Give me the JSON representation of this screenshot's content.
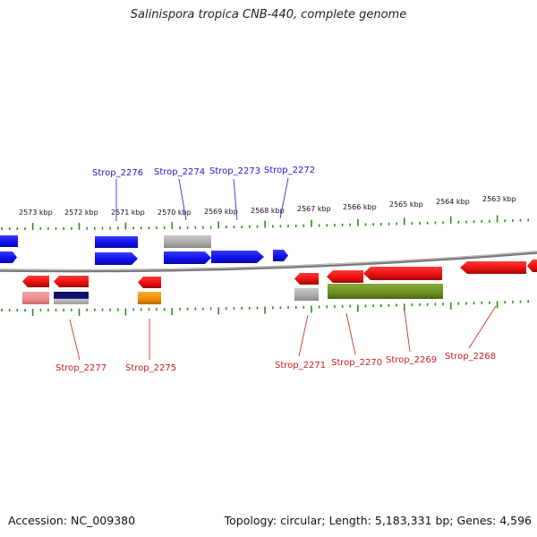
{
  "title": "Salinispora tropica CNB-440, complete genome",
  "footer": {
    "accession": "Accession: NC_009380",
    "summary": "Topology: circular; Length: 5,183,331 bp; Genes: 4,596"
  },
  "colors": {
    "forward_label": "#1a1acc",
    "reverse_label": "#cc1a1a",
    "tick": "#2e8b22",
    "backbone": "#888888"
  },
  "scale_labels": [
    {
      "kbp": 2573,
      "text": "2573 kbp"
    },
    {
      "kbp": 2572,
      "text": "2572 kbp"
    },
    {
      "kbp": 2571,
      "text": "2571 kbp"
    },
    {
      "kbp": 2570,
      "text": "2570 kbp"
    },
    {
      "kbp": 2569,
      "text": "2569 kbp"
    },
    {
      "kbp": 2568,
      "text": "2568 kbp"
    },
    {
      "kbp": 2567,
      "text": "2567 kbp"
    },
    {
      "kbp": 2566,
      "text": "2566 kbp"
    },
    {
      "kbp": 2565,
      "text": "2565 kbp"
    },
    {
      "kbp": 2564,
      "text": "2564 kbp"
    },
    {
      "kbp": 2563,
      "text": "2563 kbp"
    }
  ],
  "gene_labels": [
    {
      "text": "Strop_2276",
      "strand": "forward"
    },
    {
      "text": "Strop_2274",
      "strand": "forward"
    },
    {
      "text": "Strop_2273",
      "strand": "forward"
    },
    {
      "text": "Strop_2272",
      "strand": "forward"
    },
    {
      "text": "Strop_2277",
      "strand": "reverse"
    },
    {
      "text": "Strop_2275",
      "strand": "reverse"
    },
    {
      "text": "Strop_2271",
      "strand": "reverse"
    },
    {
      "text": "Strop_2270",
      "strand": "reverse"
    },
    {
      "text": "Strop_2269",
      "strand": "reverse"
    },
    {
      "text": "Strop_2268",
      "strand": "reverse"
    }
  ],
  "feature_colors": {
    "cds_forward": "#1010ee",
    "cds_reverse": "#ee1010",
    "gray": "#aaaaaa",
    "pink": "#e88a8a",
    "navy": "#10106e",
    "orange": "#f08c00",
    "olive": "#6b8e23"
  }
}
